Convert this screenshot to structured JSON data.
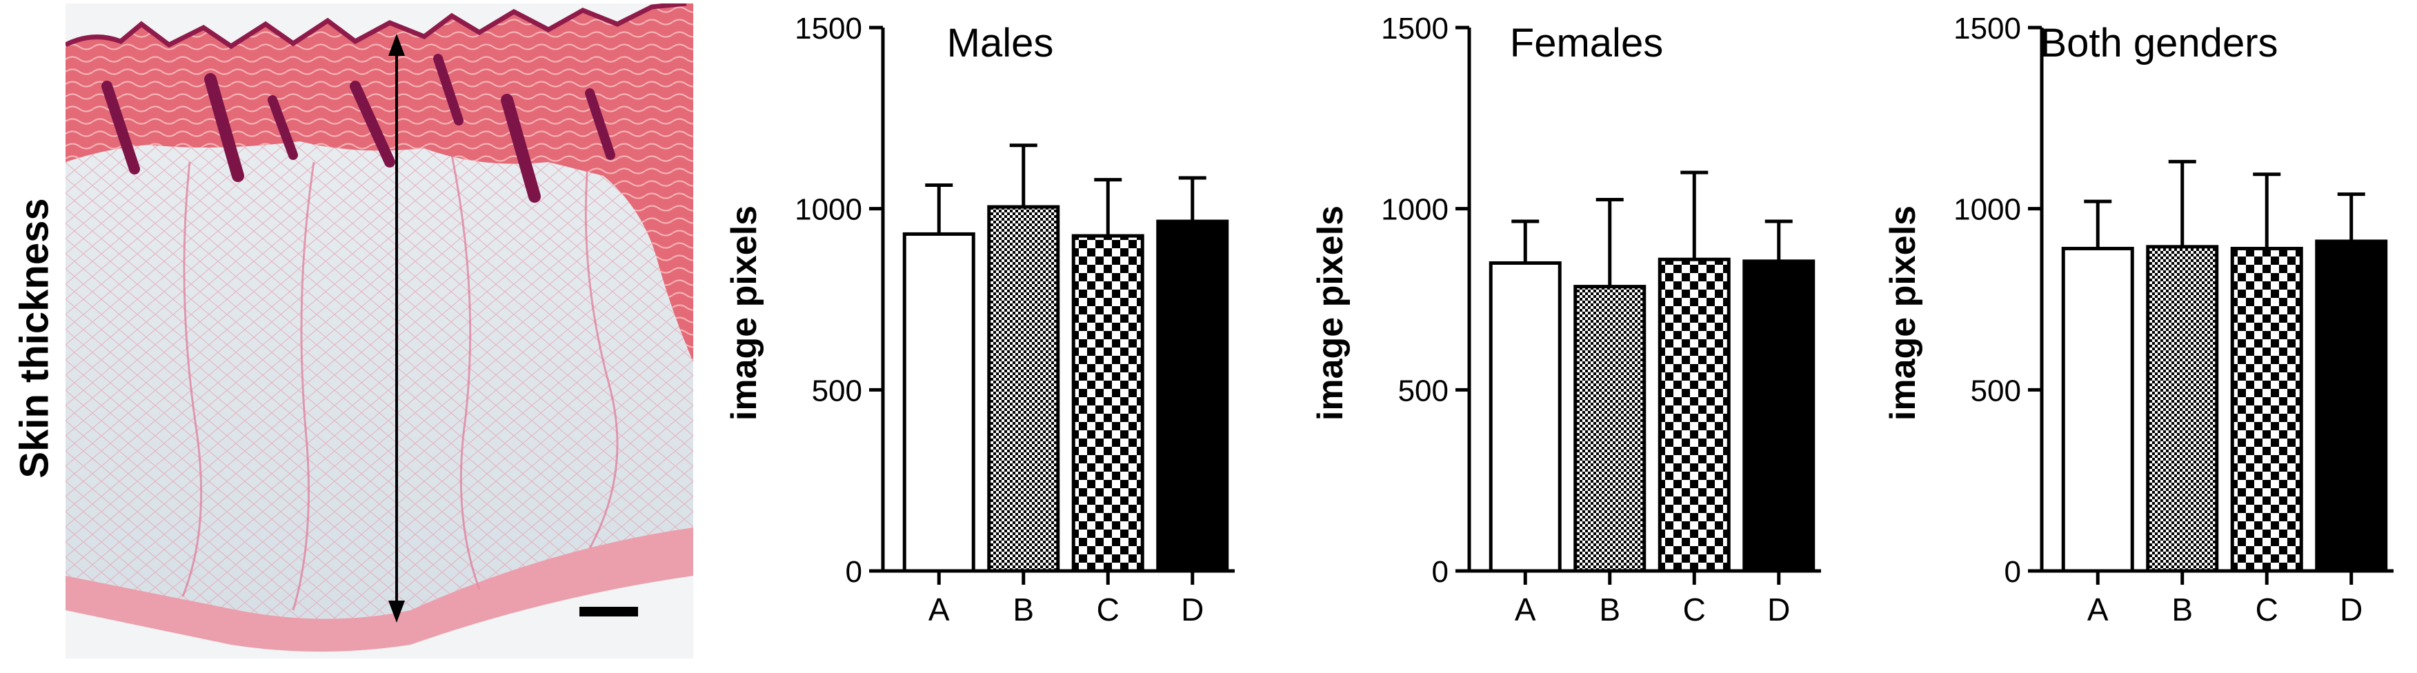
{
  "figure": {
    "side_label": "Skin thickness",
    "histology": {
      "scale_bar": "scale bar"
    }
  },
  "colors": {
    "axis": "#000000",
    "dermis": "#e46a78",
    "dermis_dark": "#a31c55",
    "subcutis_bg": "#dfe6ea",
    "tissue_line": "#e07895"
  },
  "chart_data": [
    {
      "type": "bar",
      "title": "Males",
      "ylabel": "image pixels",
      "xlabel": "",
      "ylim": [
        0,
        1500
      ],
      "yticks": [
        0,
        500,
        1000,
        1500
      ],
      "grid": false,
      "categories": [
        "A",
        "B",
        "C",
        "D"
      ],
      "patterns": [
        "white",
        "fine-check",
        "coarse-check",
        "black"
      ],
      "values": [
        930,
        1005,
        925,
        965
      ],
      "errors": [
        135,
        170,
        155,
        120
      ]
    },
    {
      "type": "bar",
      "title": "Females",
      "ylabel": "image pixels",
      "xlabel": "",
      "ylim": [
        0,
        1500
      ],
      "yticks": [
        0,
        500,
        1000,
        1500
      ],
      "grid": false,
      "categories": [
        "A",
        "B",
        "C",
        "D"
      ],
      "patterns": [
        "white",
        "fine-check",
        "coarse-check",
        "black"
      ],
      "values": [
        850,
        785,
        860,
        855
      ],
      "errors": [
        115,
        240,
        240,
        110
      ]
    },
    {
      "type": "bar",
      "title": "Both genders",
      "ylabel": "image pixels",
      "xlabel": "",
      "ylim": [
        0,
        1500
      ],
      "yticks": [
        0,
        500,
        1000,
        1500
      ],
      "grid": false,
      "categories": [
        "A",
        "B",
        "C",
        "D"
      ],
      "patterns": [
        "white",
        "fine-check",
        "coarse-check",
        "black"
      ],
      "values": [
        890,
        895,
        890,
        910
      ],
      "errors": [
        130,
        235,
        205,
        130
      ]
    }
  ]
}
